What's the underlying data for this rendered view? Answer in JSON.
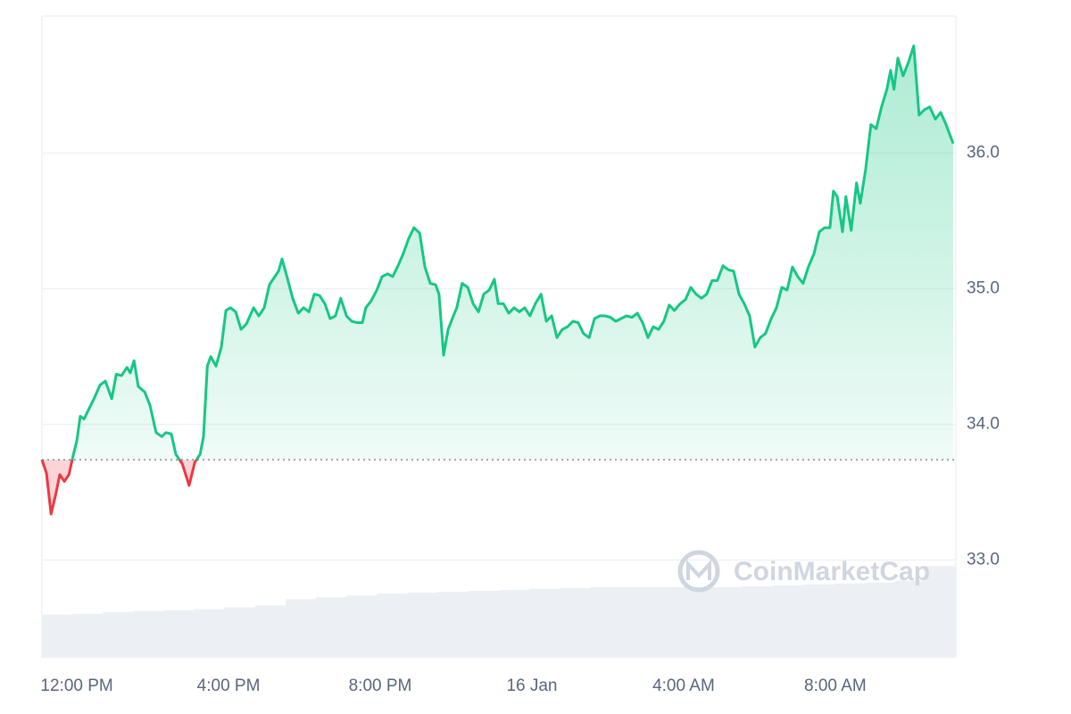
{
  "chart_data": {
    "type": "line",
    "watermark": "CoinMarketCap",
    "baseline": 33.74,
    "colors": {
      "up": "#16c784",
      "down": "#ea3943",
      "volume": "#eceff3"
    },
    "xlim": [
      11.08,
      35.18
    ],
    "xticks": [
      {
        "value": 12,
        "label": "12:00 PM"
      },
      {
        "value": 16,
        "label": "4:00 PM"
      },
      {
        "value": 20,
        "label": "8:00 PM"
      },
      {
        "value": 24,
        "label": "16 Jan"
      },
      {
        "value": 28,
        "label": "4:00 AM"
      },
      {
        "value": 32,
        "label": "8:00 AM"
      }
    ],
    "ylim": [
      32.28,
      37.01
    ],
    "yticks": [
      {
        "value": 33,
        "label": "33.0"
      },
      {
        "value": 34,
        "label": "34.0"
      },
      {
        "value": 35,
        "label": "35.0"
      },
      {
        "value": 36,
        "label": "36.0"
      }
    ],
    "grid": true,
    "x": [
      11.08,
      11.2,
      11.32,
      11.44,
      11.55,
      11.67,
      11.79,
      11.91,
      12.0,
      12.09,
      12.19,
      12.33,
      12.47,
      12.61,
      12.75,
      12.92,
      13.04,
      13.18,
      13.32,
      13.41,
      13.51,
      13.62,
      13.79,
      13.93,
      14.09,
      14.24,
      14.35,
      14.49,
      14.61,
      14.78,
      14.96,
      15.11,
      15.25,
      15.34,
      15.44,
      15.53,
      15.67,
      15.81,
      15.93,
      16.05,
      16.19,
      16.33,
      16.47,
      16.66,
      16.8,
      16.94,
      17.08,
      17.22,
      17.32,
      17.41,
      17.55,
      17.69,
      17.84,
      17.98,
      18.12,
      18.26,
      18.4,
      18.54,
      18.68,
      18.82,
      18.96,
      19.11,
      19.25,
      19.39,
      19.53,
      19.62,
      19.76,
      19.91,
      20.05,
      20.19,
      20.33,
      20.47,
      20.61,
      20.75,
      20.89,
      21.04,
      21.18,
      21.32,
      21.46,
      21.55,
      21.67,
      21.79,
      21.93,
      22.02,
      22.16,
      22.31,
      22.45,
      22.59,
      22.73,
      22.87,
      23.01,
      23.11,
      23.25,
      23.39,
      23.53,
      23.67,
      23.81,
      23.95,
      24.09,
      24.24,
      24.38,
      24.52,
      24.66,
      24.8,
      24.94,
      25.08,
      25.22,
      25.36,
      25.51,
      25.65,
      25.79,
      25.93,
      26.07,
      26.21,
      26.35,
      26.49,
      26.64,
      26.78,
      26.92,
      27.06,
      27.2,
      27.34,
      27.48,
      27.62,
      27.76,
      27.91,
      28.05,
      28.19,
      28.33,
      28.47,
      28.61,
      28.75,
      28.89,
      29.04,
      29.18,
      29.32,
      29.46,
      29.6,
      29.74,
      29.88,
      30.02,
      30.16,
      30.31,
      30.45,
      30.59,
      30.73,
      30.87,
      31.01,
      31.15,
      31.29,
      31.44,
      31.58,
      31.72,
      31.86,
      31.95,
      32.05,
      32.19,
      32.28,
      32.42,
      32.56,
      32.66,
      32.8,
      32.94,
      33.08,
      33.22,
      33.36,
      33.46,
      33.55,
      33.65,
      33.79,
      33.93,
      34.07,
      34.21,
      34.35,
      34.49,
      34.64,
      34.78,
      34.92,
      35.11
    ],
    "values": [
      33.74,
      33.64,
      33.34,
      33.48,
      33.63,
      33.58,
      33.63,
      33.78,
      33.88,
      34.06,
      34.04,
      34.12,
      34.2,
      34.29,
      34.32,
      34.19,
      34.37,
      34.36,
      34.42,
      34.38,
      34.47,
      34.28,
      34.24,
      34.14,
      33.94,
      33.91,
      33.94,
      33.93,
      33.78,
      33.71,
      33.55,
      33.72,
      33.78,
      33.91,
      34.43,
      34.5,
      34.43,
      34.57,
      34.84,
      34.86,
      34.83,
      34.7,
      34.74,
      34.86,
      34.8,
      34.86,
      35.03,
      35.09,
      35.13,
      35.22,
      35.08,
      34.93,
      34.82,
      34.86,
      34.83,
      34.96,
      34.95,
      34.89,
      34.78,
      34.8,
      34.93,
      34.8,
      34.76,
      34.75,
      34.75,
      34.86,
      34.91,
      34.99,
      35.09,
      35.11,
      35.09,
      35.17,
      35.26,
      35.37,
      35.45,
      35.41,
      35.16,
      35.04,
      35.03,
      34.96,
      34.51,
      34.7,
      34.8,
      34.86,
      35.04,
      35.01,
      34.89,
      34.83,
      34.96,
      34.99,
      35.07,
      34.89,
      34.89,
      34.82,
      34.86,
      34.83,
      34.86,
      34.8,
      34.89,
      34.96,
      34.76,
      34.8,
      34.64,
      34.7,
      34.72,
      34.76,
      34.75,
      34.67,
      34.64,
      34.78,
      34.8,
      34.8,
      34.79,
      34.76,
      34.78,
      34.8,
      34.79,
      34.82,
      34.75,
      34.64,
      34.72,
      34.7,
      34.76,
      34.88,
      34.84,
      34.89,
      34.92,
      35.01,
      34.96,
      34.93,
      34.96,
      35.06,
      35.06,
      35.17,
      35.14,
      35.13,
      34.96,
      34.89,
      34.8,
      34.57,
      34.64,
      34.67,
      34.78,
      34.86,
      35.01,
      34.99,
      35.16,
      35.09,
      35.04,
      35.16,
      35.26,
      35.42,
      35.45,
      35.45,
      35.72,
      35.68,
      35.42,
      35.68,
      35.43,
      35.78,
      35.63,
      35.88,
      36.21,
      36.18,
      36.34,
      36.47,
      36.61,
      36.47,
      36.7,
      36.57,
      36.67,
      36.79,
      36.28,
      36.32,
      36.34,
      36.25,
      36.3,
      36.21,
      36.07
    ],
    "volume": {
      "lim": [
        0,
        700
      ],
      "values": [
        47,
        48,
        50,
        51,
        52,
        53,
        55,
        57,
        64,
        66,
        68,
        70,
        71,
        72,
        73,
        74,
        75,
        76,
        77,
        77,
        77,
        77,
        77,
        78,
        79,
        80,
        81,
        82,
        84,
        100
      ]
    }
  }
}
